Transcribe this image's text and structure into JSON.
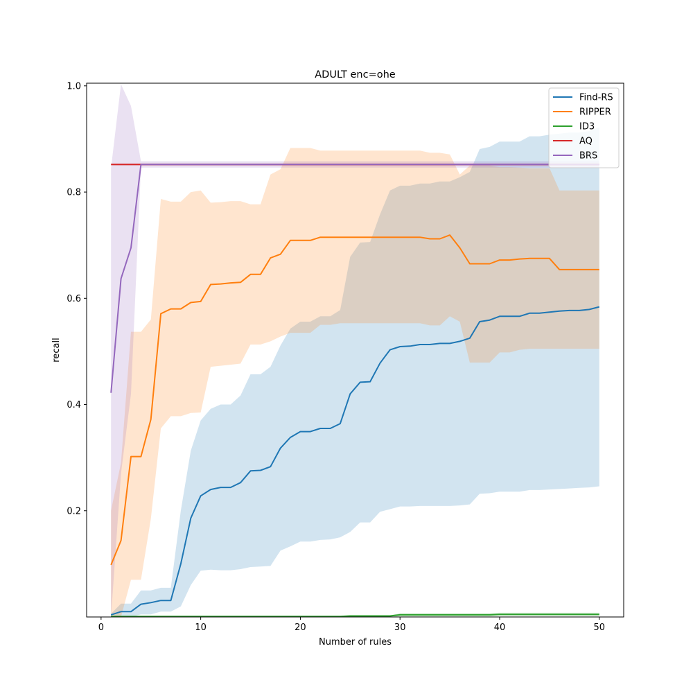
{
  "chart_data": {
    "type": "line",
    "title": "ADULT enc=ohe",
    "xlabel": "Number of rules",
    "ylabel": "recall",
    "xlim": [
      -1.45,
      52.45
    ],
    "ylim": [
      0.0,
      1.005
    ],
    "xticks": [
      0,
      10,
      20,
      30,
      40,
      50
    ],
    "yticks": [
      0.2,
      0.4,
      0.6,
      0.8,
      1.0
    ],
    "xtick_labels": [
      "0",
      "10",
      "20",
      "30",
      "40",
      "50"
    ],
    "ytick_labels": [
      "0.2",
      "0.4",
      "0.6",
      "0.8",
      "1.0"
    ],
    "grid": false,
    "legend_position": "upper right",
    "x": [
      1,
      2,
      3,
      4,
      5,
      6,
      7,
      8,
      9,
      10,
      11,
      12,
      13,
      14,
      15,
      16,
      17,
      18,
      19,
      20,
      21,
      22,
      23,
      24,
      25,
      26,
      27,
      28,
      29,
      30,
      31,
      32,
      33,
      34,
      35,
      36,
      37,
      38,
      39,
      40,
      41,
      42,
      43,
      44,
      45,
      46,
      47,
      48,
      49,
      50
    ],
    "series": [
      {
        "name": "Find-RS",
        "color": "#1f77b4",
        "values": [
          0.004,
          0.01,
          0.01,
          0.024,
          0.027,
          0.031,
          0.031,
          0.1,
          0.186,
          0.228,
          0.24,
          0.244,
          0.244,
          0.253,
          0.275,
          0.276,
          0.283,
          0.318,
          0.338,
          0.349,
          0.349,
          0.355,
          0.355,
          0.364,
          0.42,
          0.442,
          0.443,
          0.478,
          0.503,
          0.509,
          0.51,
          0.513,
          0.513,
          0.515,
          0.515,
          0.519,
          0.525,
          0.556,
          0.559,
          0.566,
          0.566,
          0.566,
          0.572,
          0.572,
          0.574,
          0.576,
          0.577,
          0.577,
          0.579,
          0.584
        ],
        "lower": [
          0.0,
          0.0,
          0.0,
          0.005,
          0.005,
          0.01,
          0.01,
          0.02,
          0.06,
          0.087,
          0.089,
          0.088,
          0.088,
          0.09,
          0.094,
          0.095,
          0.096,
          0.125,
          0.133,
          0.142,
          0.142,
          0.145,
          0.146,
          0.15,
          0.16,
          0.178,
          0.178,
          0.198,
          0.203,
          0.208,
          0.208,
          0.209,
          0.209,
          0.209,
          0.209,
          0.21,
          0.212,
          0.232,
          0.233,
          0.236,
          0.236,
          0.236,
          0.239,
          0.239,
          0.24,
          0.241,
          0.242,
          0.243,
          0.244,
          0.246
        ],
        "upper": [
          0.006,
          0.025,
          0.025,
          0.05,
          0.05,
          0.055,
          0.055,
          0.2,
          0.313,
          0.37,
          0.392,
          0.4,
          0.4,
          0.417,
          0.457,
          0.457,
          0.471,
          0.511,
          0.543,
          0.556,
          0.556,
          0.566,
          0.566,
          0.578,
          0.678,
          0.705,
          0.706,
          0.758,
          0.803,
          0.812,
          0.812,
          0.816,
          0.816,
          0.82,
          0.82,
          0.828,
          0.838,
          0.881,
          0.885,
          0.895,
          0.895,
          0.895,
          0.905,
          0.905,
          0.908,
          0.91,
          0.912,
          0.912,
          0.915,
          0.922
        ]
      },
      {
        "name": "RIPPER",
        "color": "#ff7f0e",
        "values": [
          0.098,
          0.144,
          0.302,
          0.302,
          0.372,
          0.571,
          0.58,
          0.58,
          0.592,
          0.594,
          0.626,
          0.627,
          0.629,
          0.63,
          0.645,
          0.645,
          0.676,
          0.683,
          0.709,
          0.709,
          0.709,
          0.715,
          0.715,
          0.715,
          0.715,
          0.715,
          0.715,
          0.715,
          0.715,
          0.715,
          0.715,
          0.715,
          0.712,
          0.712,
          0.719,
          0.695,
          0.665,
          0.665,
          0.665,
          0.672,
          0.672,
          0.674,
          0.675,
          0.675,
          0.675,
          0.654,
          0.654,
          0.654,
          0.654,
          0.654
        ],
        "lower": [
          0.0,
          0.0,
          0.07,
          0.07,
          0.185,
          0.355,
          0.378,
          0.378,
          0.384,
          0.385,
          0.471,
          0.473,
          0.475,
          0.477,
          0.513,
          0.513,
          0.519,
          0.528,
          0.535,
          0.535,
          0.535,
          0.55,
          0.55,
          0.553,
          0.553,
          0.553,
          0.553,
          0.553,
          0.553,
          0.553,
          0.553,
          0.553,
          0.549,
          0.549,
          0.566,
          0.556,
          0.479,
          0.479,
          0.479,
          0.498,
          0.498,
          0.503,
          0.505,
          0.505,
          0.505,
          0.505,
          0.505,
          0.505,
          0.505,
          0.505
        ],
        "upper": [
          0.2,
          0.29,
          0.537,
          0.537,
          0.56,
          0.787,
          0.782,
          0.782,
          0.8,
          0.803,
          0.78,
          0.781,
          0.783,
          0.783,
          0.777,
          0.777,
          0.833,
          0.843,
          0.883,
          0.883,
          0.883,
          0.878,
          0.878,
          0.878,
          0.878,
          0.878,
          0.878,
          0.878,
          0.878,
          0.878,
          0.878,
          0.878,
          0.874,
          0.874,
          0.871,
          0.833,
          0.85,
          0.85,
          0.85,
          0.847,
          0.847,
          0.846,
          0.845,
          0.845,
          0.845,
          0.803,
          0.803,
          0.803,
          0.803,
          0.803
        ]
      },
      {
        "name": "ID3",
        "color": "#2ca02c",
        "values": [
          0.001,
          0.001,
          0.001,
          0.001,
          0.001,
          0.001,
          0.001,
          0.001,
          0.001,
          0.001,
          0.001,
          0.001,
          0.001,
          0.001,
          0.001,
          0.001,
          0.001,
          0.001,
          0.001,
          0.001,
          0.001,
          0.001,
          0.001,
          0.001,
          0.002,
          0.002,
          0.002,
          0.002,
          0.002,
          0.004,
          0.004,
          0.004,
          0.004,
          0.004,
          0.004,
          0.004,
          0.004,
          0.004,
          0.004,
          0.005,
          0.005,
          0.005,
          0.005,
          0.005,
          0.005,
          0.005,
          0.005,
          0.005,
          0.005,
          0.005
        ],
        "lower": [
          0.0,
          0.0,
          0.0,
          0.0,
          0.0,
          0.0,
          0.0,
          0.0,
          0.0,
          0.0,
          0.0,
          0.0,
          0.0,
          0.0,
          0.0,
          0.0,
          0.0,
          0.0,
          0.0,
          0.0,
          0.0,
          0.0,
          0.0,
          0.0,
          0.0,
          0.0,
          0.0,
          0.0,
          0.0,
          0.001,
          0.001,
          0.001,
          0.001,
          0.001,
          0.001,
          0.001,
          0.001,
          0.001,
          0.001,
          0.002,
          0.002,
          0.002,
          0.002,
          0.002,
          0.002,
          0.002,
          0.002,
          0.002,
          0.002,
          0.002
        ],
        "upper": [
          0.002,
          0.002,
          0.002,
          0.002,
          0.002,
          0.002,
          0.002,
          0.002,
          0.002,
          0.002,
          0.002,
          0.002,
          0.002,
          0.002,
          0.002,
          0.002,
          0.002,
          0.002,
          0.002,
          0.002,
          0.002,
          0.002,
          0.002,
          0.002,
          0.003,
          0.003,
          0.003,
          0.003,
          0.003,
          0.007,
          0.007,
          0.007,
          0.007,
          0.007,
          0.007,
          0.007,
          0.007,
          0.007,
          0.007,
          0.008,
          0.008,
          0.008,
          0.008,
          0.008,
          0.008,
          0.008,
          0.008,
          0.008,
          0.008,
          0.008
        ]
      },
      {
        "name": "AQ",
        "color": "#d62728",
        "values": [
          0.852,
          0.852,
          0.852,
          0.852,
          0.852,
          0.852,
          0.852,
          0.852,
          0.852,
          0.852,
          0.852,
          0.852,
          0.852,
          0.852,
          0.852,
          0.852,
          0.852,
          0.852,
          0.852,
          0.852,
          0.852,
          0.852,
          0.852,
          0.852,
          0.852,
          0.852,
          0.852,
          0.852,
          0.852,
          0.852,
          0.852,
          0.852,
          0.852,
          0.852,
          0.852,
          0.852,
          0.852,
          0.852,
          0.852,
          0.852,
          0.852,
          0.852,
          0.852,
          0.852,
          0.852,
          0.852,
          0.852,
          0.852,
          0.852,
          0.852
        ],
        "lower": [
          0.85,
          0.85,
          0.85,
          0.85,
          0.85,
          0.85,
          0.85,
          0.85,
          0.85,
          0.85,
          0.85,
          0.85,
          0.85,
          0.85,
          0.85,
          0.85,
          0.85,
          0.85,
          0.85,
          0.85,
          0.85,
          0.85,
          0.85,
          0.85,
          0.85,
          0.85,
          0.85,
          0.85,
          0.85,
          0.85,
          0.85,
          0.85,
          0.85,
          0.85,
          0.85,
          0.85,
          0.85,
          0.85,
          0.85,
          0.85,
          0.85,
          0.85,
          0.85,
          0.85,
          0.85,
          0.85,
          0.85,
          0.85,
          0.85,
          0.85
        ],
        "upper": [
          0.854,
          0.854,
          0.854,
          0.854,
          0.854,
          0.854,
          0.854,
          0.854,
          0.854,
          0.854,
          0.854,
          0.854,
          0.854,
          0.854,
          0.854,
          0.854,
          0.854,
          0.854,
          0.854,
          0.854,
          0.854,
          0.854,
          0.854,
          0.854,
          0.854,
          0.854,
          0.854,
          0.854,
          0.854,
          0.854,
          0.854,
          0.854,
          0.854,
          0.854,
          0.854,
          0.854,
          0.854,
          0.854,
          0.854,
          0.854,
          0.854,
          0.854,
          0.854,
          0.854,
          0.854,
          0.854,
          0.854,
          0.854,
          0.854,
          0.854
        ]
      },
      {
        "name": "BRS",
        "color": "#9467bd",
        "values": [
          0.422,
          0.637,
          0.695,
          0.852,
          0.852,
          0.852,
          0.852,
          0.852,
          0.852,
          0.852,
          0.852,
          0.852,
          0.852,
          0.852,
          0.852,
          0.852,
          0.852,
          0.852,
          0.852,
          0.852,
          0.852,
          0.852,
          0.852,
          0.852,
          0.852,
          0.852,
          0.852,
          0.852,
          0.852,
          0.852,
          0.852,
          0.852,
          0.852,
          0.852,
          0.852,
          0.852,
          0.852,
          0.852,
          0.852,
          0.852,
          0.852,
          0.852,
          0.852,
          0.852,
          0.852,
          0.852,
          0.852,
          0.852,
          0.852,
          0.852
        ],
        "lower": [
          0.0,
          0.27,
          0.42,
          0.846,
          0.846,
          0.846,
          0.846,
          0.846,
          0.846,
          0.846,
          0.846,
          0.846,
          0.846,
          0.846,
          0.846,
          0.846,
          0.846,
          0.846,
          0.846,
          0.846,
          0.846,
          0.846,
          0.846,
          0.846,
          0.846,
          0.846,
          0.846,
          0.846,
          0.846,
          0.846,
          0.846,
          0.846,
          0.846,
          0.846,
          0.846,
          0.846,
          0.846,
          0.846,
          0.846,
          0.846,
          0.846,
          0.846,
          0.846,
          0.846,
          0.846,
          0.846,
          0.846,
          0.846,
          0.846,
          0.846
        ],
        "upper": [
          0.845,
          1.003,
          0.962,
          0.858,
          0.858,
          0.858,
          0.858,
          0.858,
          0.858,
          0.858,
          0.858,
          0.858,
          0.858,
          0.858,
          0.858,
          0.858,
          0.858,
          0.858,
          0.858,
          0.858,
          0.858,
          0.858,
          0.858,
          0.858,
          0.858,
          0.858,
          0.858,
          0.858,
          0.858,
          0.858,
          0.858,
          0.858,
          0.858,
          0.858,
          0.858,
          0.858,
          0.858,
          0.858,
          0.858,
          0.858,
          0.858,
          0.858,
          0.858,
          0.858,
          0.858,
          0.858,
          0.858,
          0.858,
          0.858,
          0.858
        ]
      }
    ]
  }
}
